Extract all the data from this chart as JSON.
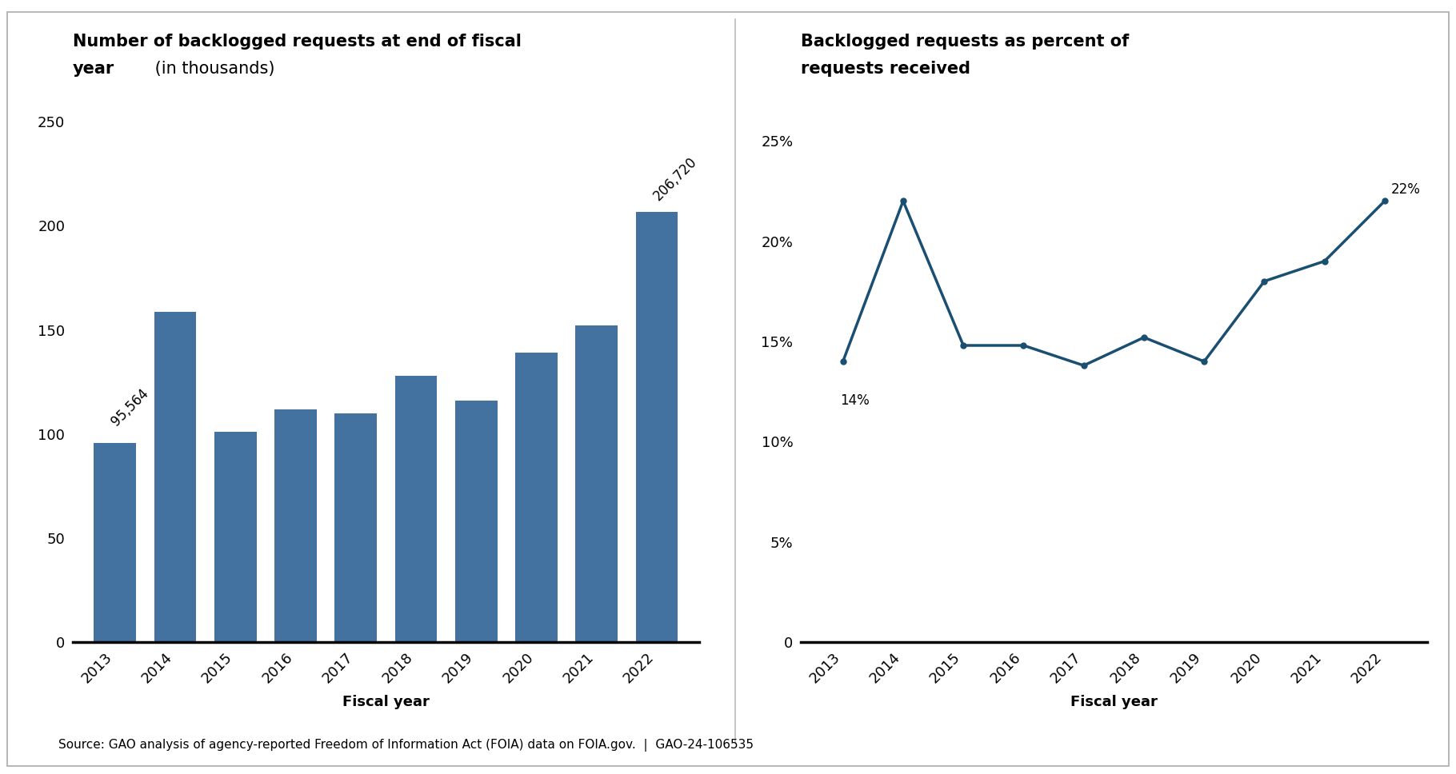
{
  "bar_years": [
    2013,
    2014,
    2015,
    2016,
    2017,
    2018,
    2019,
    2020,
    2021,
    2022
  ],
  "bar_values": [
    95.564,
    158.5,
    101.2,
    112.0,
    110.0,
    128.0,
    116.0,
    139.0,
    152.3,
    206.72
  ],
  "bar_label_first": "95,564",
  "bar_label_last": "206,720",
  "bar_color": "#4472a0",
  "bar_xlabel": "Fiscal year",
  "bar_ylim": [
    0,
    260
  ],
  "bar_yticks": [
    0,
    50,
    100,
    150,
    200,
    250
  ],
  "line_years": [
    2013,
    2014,
    2015,
    2016,
    2017,
    2018,
    2019,
    2020,
    2021,
    2022
  ],
  "line_values": [
    14,
    22,
    14.8,
    14.8,
    13.8,
    15.2,
    14.0,
    18.0,
    19.0,
    22
  ],
  "line_label_first": "14%",
  "line_label_last": "22%",
  "line_color": "#1a4f72",
  "line_xlabel": "Fiscal year",
  "line_ylim": [
    0,
    27
  ],
  "line_yticks": [
    0,
    5,
    10,
    15,
    20,
    25
  ],
  "source_text": "Source: GAO analysis of agency-reported Freedom of Information Act (FOIA) data on FOIA.gov.  |  GAO-24-106535",
  "bg_color": "#ffffff",
  "title_fontsize": 15,
  "axis_label_fontsize": 13,
  "tick_fontsize": 13,
  "annotation_fontsize": 12,
  "source_fontsize": 11,
  "separator_color": "#bbbbbb"
}
